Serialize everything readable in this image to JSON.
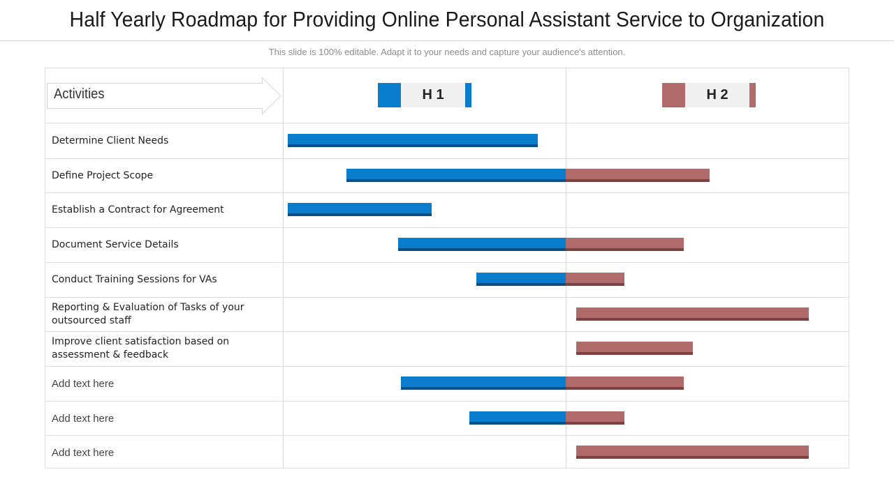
{
  "title": "Half Yearly Roadmap for Providing Online Personal Assistant Service to Organization",
  "subtitle": "This slide is 100% editable. Adapt it to your needs and capture your audience's attention.",
  "colors": {
    "h1": "#0a7ccc",
    "h1_shadow": "#0b4f86",
    "h2": "#b06a69",
    "h2_shadow": "#7a4342"
  },
  "chart_data": {
    "type": "gantt",
    "header_label": "Activities",
    "periods": [
      "H 1",
      "H 2"
    ],
    "unit": "months",
    "xlim": [
      0,
      12
    ],
    "tasks": [
      {
        "label": "Determine Client Needs",
        "start": 0.1,
        "end": 5.4,
        "placeholder": false
      },
      {
        "label": "Define Project Scope",
        "start": 1.35,
        "end": 9.05,
        "placeholder": false
      },
      {
        "label": "Establish a Contract for Agreement",
        "start": 0.1,
        "end": 3.15,
        "placeholder": false
      },
      {
        "label": "Document  Service Details",
        "start": 2.45,
        "end": 8.5,
        "placeholder": false
      },
      {
        "label": "Conduct Training Sessions for VAs",
        "start": 4.1,
        "end": 7.25,
        "placeholder": false
      },
      {
        "label": "Reporting & Evaluation of Tasks of your outsourced staff",
        "start": 6.22,
        "end": 11.15,
        "placeholder": false
      },
      {
        "label": "Improve  client satisfaction based on assessment & feedback",
        "start": 6.22,
        "end": 8.7,
        "placeholder": false
      },
      {
        "label": "Add text here",
        "start": 2.5,
        "end": 8.5,
        "placeholder": true
      },
      {
        "label": "Add text here",
        "start": 3.95,
        "end": 7.25,
        "placeholder": true
      },
      {
        "label": "Add text here",
        "start": 6.22,
        "end": 11.15,
        "placeholder": true
      }
    ]
  }
}
